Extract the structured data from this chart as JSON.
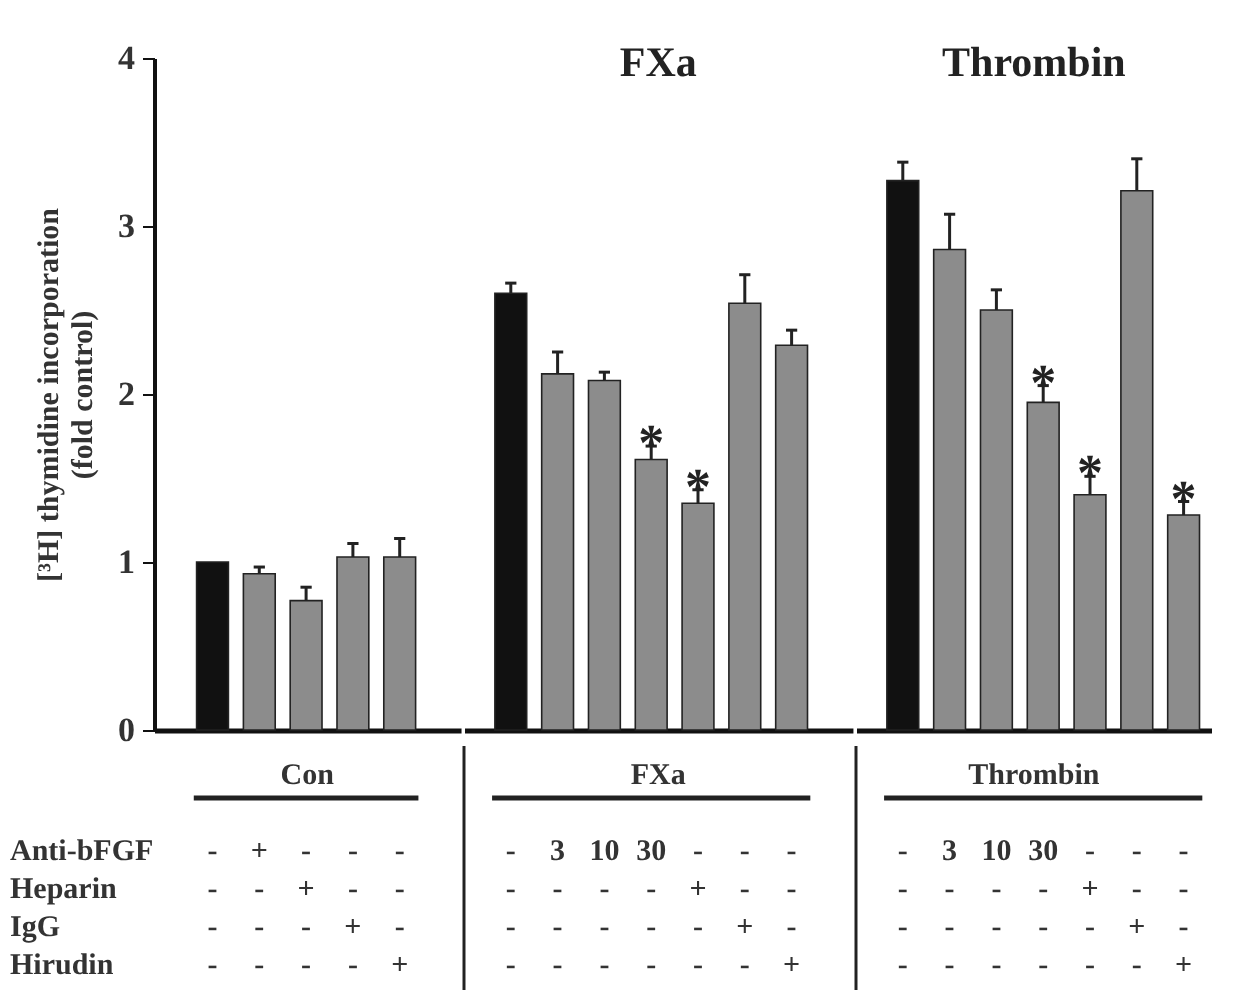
{
  "chart_data": [
    {
      "type": "bar",
      "xlabel": "Con",
      "ylabel": "[³H] thymidine incorporation\n(fold control)",
      "ylim": [
        0,
        4
      ],
      "yticks": [
        0,
        1,
        2,
        3,
        4
      ],
      "categories": [
        "-\n-\n-\n-",
        "+\n-\n-\n-",
        "-\n+\n-\n-",
        "-\n-\n+\n-",
        "-\n-\n-\n+"
      ],
      "values": [
        1.0,
        0.93,
        0.77,
        1.03,
        1.03
      ],
      "errors": [
        null,
        0.04,
        0.08,
        0.08,
        0.11
      ],
      "colors": [
        "#111111",
        "#8c8c8c",
        "#8c8c8c",
        "#8c8c8c",
        "#8c8c8c"
      ],
      "annotations": [
        "Anti-bFGF",
        "Heparin",
        "IgG",
        "Hirudin"
      ]
    },
    {
      "type": "bar",
      "title": "FXa",
      "xlabel": "FXa",
      "ylim": [
        0,
        4
      ],
      "tick_labels": "x",
      "categories": [
        "-\n-\n-\n-",
        "3\n-\n-\n-",
        "10\n-\n-\n-",
        "30\n-\n-\n-",
        "-\n+\n-\n-",
        "-\n-\n+\n-",
        "-\n-\n-\n+"
      ],
      "values": [
        2.6,
        2.12,
        2.08,
        1.61,
        1.35,
        2.54,
        2.29
      ],
      "errors": [
        0.06,
        0.13,
        0.05,
        0.08,
        0.08,
        0.17,
        0.09
      ],
      "colors": [
        "#111111",
        "#8c8c8c",
        "#8c8c8c",
        "#8c8c8c",
        "#8c8c8c",
        "#8c8c8c",
        "#8c8c8c"
      ],
      "value_labels": [
        null,
        null,
        null,
        "*",
        "*",
        null,
        null
      ]
    },
    {
      "type": "bar",
      "title": "Thrombin",
      "xlabel": "Thrombin",
      "ylim": [
        0,
        4
      ],
      "tick_labels": "x",
      "categories": [
        "-\n-\n-\n-",
        "3\n-\n-\n-",
        "10\n-\n-\n-",
        "30\n-\n-\n-",
        "-\n+\n-\n-",
        "-\n-\n+\n-",
        "-\n-\n-\n+"
      ],
      "values": [
        3.27,
        2.86,
        2.5,
        1.95,
        1.4,
        3.21,
        1.28
      ],
      "errors": [
        0.11,
        0.21,
        0.12,
        0.1,
        0.11,
        0.19,
        0.08
      ],
      "colors": [
        "#111111",
        "#8c8c8c",
        "#8c8c8c",
        "#8c8c8c",
        "#8c8c8c",
        "#8c8c8c",
        "#8c8c8c"
      ],
      "value_labels": [
        null,
        null,
        null,
        "*",
        "*",
        null,
        "*"
      ]
    }
  ]
}
